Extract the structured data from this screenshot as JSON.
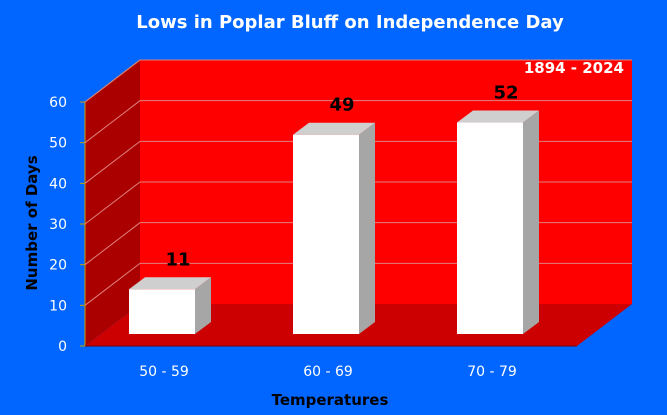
{
  "chart_data": {
    "type": "bar",
    "title": "Lows in Poplar Bluff on Independence Day",
    "subtitle": "1894 - 2024",
    "categories": [
      "50 - 59",
      "60 - 69",
      "70 - 79"
    ],
    "values": [
      11,
      49,
      52
    ],
    "data_labels": [
      "11",
      "49",
      "52"
    ],
    "xlabel": "Temperatures",
    "ylabel": "Number of Days",
    "ylim": [
      0,
      60
    ],
    "yticks": [
      0,
      10,
      20,
      30,
      40,
      50,
      60
    ],
    "grid": true,
    "legend": "none",
    "style": "3d",
    "colors": {
      "background": "#0066ff",
      "back_wall": "#ff0000",
      "side_wall": "#aa0000",
      "floor": "#cc0000",
      "bar_front": "#ffffff",
      "bar_side": "#a6a6a6",
      "bar_top": "#cfcfcf",
      "gridline": "#e08080"
    }
  }
}
